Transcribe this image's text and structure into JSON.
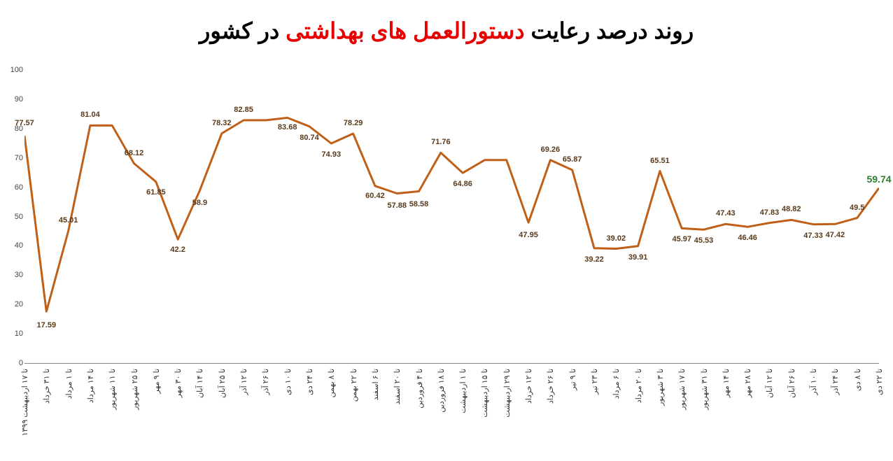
{
  "title": {
    "pre": "روند درصد رعایت ",
    "highlight": "دستورالعمل های بهداشتی",
    "post": " در کشور",
    "fontsize": 32,
    "color": "#000000",
    "highlight_color": "#e60000"
  },
  "chart": {
    "type": "line",
    "background_color": "#ffffff",
    "line_color": "#c06018",
    "line_width": 3,
    "grid_color": "#e0e0e0",
    "label_color": "#5a3a1a",
    "final_label_color": "#2e7d32",
    "label_fontsize": 11,
    "ylim": [
      0,
      100
    ],
    "ytick_step": 10,
    "yticks": [
      0,
      10,
      20,
      30,
      40,
      50,
      60,
      70,
      80,
      90,
      100
    ],
    "x_labels": [
      "تا ۱۷ اردیبهشت ۱۳۹۹",
      "تا ۳۱ خرداد",
      "تا ۱ مرداد",
      "تا ۱۴ مرداد",
      "تا ۱۱ شهریور",
      "تا ۲۵ شهریور",
      "تا ۹ مهر",
      "تا ۳۰ مهر",
      "تا ۱۴ آبان",
      "تا ۲۵ آبان",
      "تا ۱۲ آذر",
      "تا ۲۶ آذر",
      "تا ۱۰ دی",
      "تا ۲۴ دی",
      "تا ۸ بهمن",
      "تا ۲۲ بهمن",
      "تا ۶ اسفند",
      "تا ۲۰ اسفند",
      "تا ۴ فروردین",
      "تا ۱۸ فروردین",
      "تا ۱ اردیبهشت",
      "تا ۱۵ اردیبهشت",
      "تا ۲۹ اردیبهشت",
      "تا ۱۲ خرداد",
      "تا ۲۶ خرداد",
      "تا ۹ تیر",
      "تا ۲۳ تیر",
      "تا ۶ مرداد",
      "تا ۲۰ مرداد",
      "تا ۳ شهریور",
      "تا ۱۷ شهریور",
      "تا ۳۱ شهریور",
      "تا ۱۴ مهر",
      "تا ۲۸ مهر",
      "تا ۱۲ آبان",
      "تا ۲۶ آبان",
      "تا ۱۰ آذر",
      "تا ۲۴ آذر",
      "تا ۸ دی",
      "تا ۲۲ دی"
    ],
    "values": [
      77.57,
      17.59,
      45.01,
      81.04,
      81.04,
      68.12,
      61.85,
      42.2,
      58.9,
      78.32,
      82.85,
      82.85,
      83.68,
      80.74,
      74.93,
      78.29,
      60.42,
      57.88,
      58.58,
      71.76,
      64.86,
      69.26,
      69.26,
      47.95,
      69.26,
      65.87,
      39.22,
      39.02,
      39.91,
      65.51,
      45.97,
      45.53,
      47.43,
      46.46,
      47.83,
      48.82,
      47.33,
      47.42,
      49.5,
      59.74
    ],
    "data_labels": [
      {
        "i": 0,
        "text": "77.57",
        "dy": -18
      },
      {
        "i": 1,
        "text": "17.59",
        "dy": 20
      },
      {
        "i": 2,
        "text": "45.01",
        "dy": -15
      },
      {
        "i": 3,
        "text": "81.04",
        "dy": -15
      },
      {
        "i": 5,
        "text": "68.12",
        "dy": -15
      },
      {
        "i": 6,
        "text": "61.85",
        "dy": 15
      },
      {
        "i": 7,
        "text": "42.2",
        "dy": 15
      },
      {
        "i": 8,
        "text": "58.9",
        "dy": 18
      },
      {
        "i": 9,
        "text": "78.32",
        "dy": -15
      },
      {
        "i": 10,
        "text": "82.85",
        "dy": -15
      },
      {
        "i": 12,
        "text": "83.68",
        "dy": 14
      },
      {
        "i": 13,
        "text": "80.74",
        "dy": 16
      },
      {
        "i": 14,
        "text": "74.93",
        "dy": 16
      },
      {
        "i": 15,
        "text": "78.29",
        "dy": -15
      },
      {
        "i": 16,
        "text": "60.42",
        "dy": 14
      },
      {
        "i": 17,
        "text": "57.88",
        "dy": 18
      },
      {
        "i": 18,
        "text": "58.58",
        "dy": 18
      },
      {
        "i": 19,
        "text": "71.76",
        "dy": -15
      },
      {
        "i": 20,
        "text": "64.86",
        "dy": 16
      },
      {
        "i": 23,
        "text": "47.95",
        "dy": 18
      },
      {
        "i": 24,
        "text": "69.26",
        "dy": -15
      },
      {
        "i": 25,
        "text": "65.87",
        "dy": -15
      },
      {
        "i": 26,
        "text": "39.22",
        "dy": 16
      },
      {
        "i": 27,
        "text": "39.02",
        "dy": -15
      },
      {
        "i": 28,
        "text": "39.91",
        "dy": 16
      },
      {
        "i": 29,
        "text": "65.51",
        "dy": -15
      },
      {
        "i": 30,
        "text": "45.97",
        "dy": 16
      },
      {
        "i": 31,
        "text": "45.53",
        "dy": 16
      },
      {
        "i": 32,
        "text": "47.43",
        "dy": -15
      },
      {
        "i": 33,
        "text": "46.46",
        "dy": 16
      },
      {
        "i": 34,
        "text": "47.83",
        "dy": -15
      },
      {
        "i": 35,
        "text": "48.82",
        "dy": -15
      },
      {
        "i": 36,
        "text": "47.33",
        "dy": 16
      },
      {
        "i": 37,
        "text": "47.42",
        "dy": 16
      },
      {
        "i": 38,
        "text": "49.5",
        "dy": -15
      },
      {
        "i": 39,
        "text": "59.74",
        "dy": -15,
        "final": true
      }
    ]
  }
}
